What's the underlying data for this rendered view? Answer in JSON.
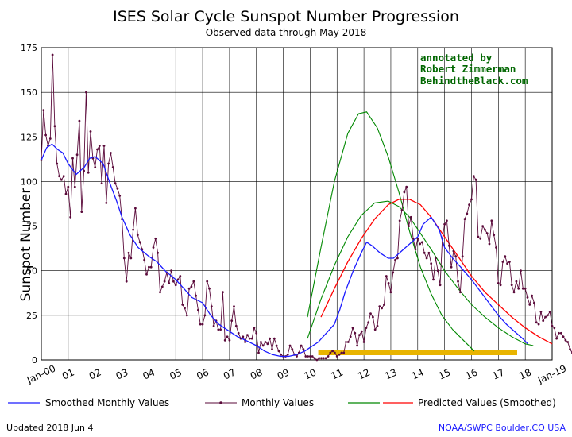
{
  "chart_data": {
    "type": "line",
    "title": "ISES Solar Cycle Sunspot Number Progression",
    "subtitle": "Observed data through May 2018",
    "ylabel": "Sunspot Number",
    "xlim": [
      2000.0,
      2019.0
    ],
    "ylim": [
      0,
      175
    ],
    "y_ticks": [
      0,
      25,
      50,
      75,
      100,
      125,
      150,
      175
    ],
    "x_ticks": [
      {
        "x": 2000,
        "label": "Jan-00"
      },
      {
        "x": 2001,
        "label": "01"
      },
      {
        "x": 2002,
        "label": "02"
      },
      {
        "x": 2003,
        "label": "03"
      },
      {
        "x": 2004,
        "label": "04"
      },
      {
        "x": 2005,
        "label": "05"
      },
      {
        "x": 2006,
        "label": "06"
      },
      {
        "x": 2007,
        "label": "07"
      },
      {
        "x": 2008,
        "label": "08"
      },
      {
        "x": 2009,
        "label": "09"
      },
      {
        "x": 2010,
        "label": "10"
      },
      {
        "x": 2011,
        "label": "11"
      },
      {
        "x": 2012,
        "label": "12"
      },
      {
        "x": 2013,
        "label": "13"
      },
      {
        "x": 2014,
        "label": "14"
      },
      {
        "x": 2015,
        "label": "15"
      },
      {
        "x": 2016,
        "label": "16"
      },
      {
        "x": 2017,
        "label": "17"
      },
      {
        "x": 2018,
        "label": "18"
      },
      {
        "x": 2019,
        "label": "Jan-19"
      }
    ],
    "grid": true,
    "annotation": [
      "annotated by",
      "Robert Zimmerman",
      "BehindtheBlack.com"
    ],
    "legend": [
      {
        "label": "Smoothed Monthly Values",
        "color": "#1a1aff",
        "style": "line"
      },
      {
        "label": "Monthly Values",
        "color": "#5a0a3a",
        "style": "line-marker"
      },
      {
        "label": "Predicted Values (Smoothed)",
        "color": "#ff0000",
        "style": "line",
        "secondary_color": "#008800"
      }
    ],
    "colors": {
      "monthly": "#5a0a3a",
      "smoothed": "#1a1aff",
      "predicted": "#ff0000",
      "bounds": "#008800",
      "bar": "#e8b400",
      "annotation": "#006600"
    },
    "series": [
      {
        "name": "Monthly Values",
        "x_start": 2000.0,
        "x_step": 0.08333,
        "values": [
          112,
          140,
          126,
          120,
          124,
          171,
          131,
          110,
          103,
          101,
          103,
          93,
          97,
          80,
          113,
          97,
          115,
          134,
          83,
          106,
          150,
          105,
          128,
          113,
          108,
          118,
          120,
          99,
          120,
          88,
          110,
          116,
          108,
          99,
          96,
          92,
          79,
          57,
          44,
          60,
          57,
          73,
          85,
          70,
          66,
          62,
          56,
          48,
          52,
          52,
          63,
          68,
          60,
          38,
          41,
          44,
          49,
          43,
          50,
          44,
          42,
          45,
          47,
          31,
          29,
          25,
          40,
          41,
          44,
          36,
          28,
          20,
          20,
          25,
          44,
          40,
          30,
          19,
          22,
          17,
          17,
          38,
          11,
          13,
          11,
          22,
          30,
          19,
          15,
          12,
          13,
          10,
          14,
          12,
          12,
          18,
          15,
          4,
          10,
          8,
          10,
          9,
          12,
          6,
          12,
          8,
          5,
          3,
          2,
          2,
          3,
          8,
          6,
          3,
          2,
          4,
          8,
          6,
          2,
          2,
          2,
          2,
          1,
          0,
          1,
          1,
          1,
          1,
          2,
          4,
          5,
          4,
          2,
          3,
          4,
          4,
          10,
          10,
          13,
          18,
          15,
          8,
          14,
          16,
          10,
          18,
          21,
          26,
          24,
          17,
          19,
          30,
          29,
          31,
          47,
          43,
          38,
          49,
          56,
          57,
          78,
          84,
          94,
          97,
          75,
          80,
          68,
          62,
          68,
          65,
          66,
          60,
          57,
          60,
          54,
          45,
          57,
          50,
          42,
          68,
          76,
          78,
          64,
          52,
          61,
          58,
          44,
          38,
          58,
          79,
          82,
          87,
          90,
          103,
          101,
          69,
          68,
          75,
          73,
          71,
          65,
          78,
          70,
          63,
          43,
          42,
          55,
          58,
          54,
          55,
          42,
          38,
          44,
          40,
          50,
          40,
          40,
          35,
          31,
          36,
          32,
          21,
          20,
          27,
          22,
          24,
          25,
          27,
          19,
          18,
          12,
          15,
          15,
          13,
          11,
          10,
          6,
          4,
          10,
          20,
          25,
          8,
          3,
          3,
          5,
          3,
          2,
          7
        ]
      },
      {
        "name": "Smoothed Monthly Values",
        "x": [
          2000.0,
          2000.2,
          2000.4,
          2000.6,
          2000.8,
          2001.0,
          2001.3,
          2001.6,
          2001.8,
          2002.0,
          2002.3,
          2002.6,
          2002.8,
          2003.0,
          2003.3,
          2003.6,
          2004.0,
          2004.3,
          2004.6,
          2005.0,
          2005.3,
          2005.6,
          2006.0,
          2006.3,
          2006.6,
          2007.0,
          2007.3,
          2007.6,
          2008.0,
          2008.3,
          2008.6,
          2008.9,
          2009.2,
          2009.5,
          2009.8,
          2010.0,
          2010.3,
          2010.6,
          2010.9,
          2011.1,
          2011.3,
          2011.6,
          2011.9,
          2012.1,
          2012.3,
          2012.6,
          2012.9,
          2013.1,
          2013.4,
          2013.7,
          2014.0,
          2014.2,
          2014.5,
          2014.8,
          2015.0,
          2015.3,
          2015.6,
          2016.0,
          2016.3,
          2016.6,
          2017.0,
          2017.3,
          2017.6,
          2017.9,
          2018.1
        ],
        "values": [
          112,
          119,
          121,
          118,
          116,
          110,
          104,
          108,
          113,
          114,
          110,
          97,
          89,
          80,
          70,
          63,
          58,
          55,
          50,
          45,
          40,
          35,
          32,
          25,
          20,
          16,
          13,
          11,
          8,
          5,
          3,
          2,
          2,
          3,
          5,
          7,
          10,
          15,
          20,
          28,
          38,
          50,
          60,
          66,
          64,
          60,
          57,
          57,
          61,
          65,
          69,
          76,
          80,
          73,
          63,
          57,
          52,
          45,
          39,
          33,
          25,
          20,
          16,
          12,
          9
        ]
      },
      {
        "name": "Predicted (Smoothed)",
        "x": [
          2010.4,
          2010.9,
          2011.4,
          2011.9,
          2012.4,
          2012.9,
          2013.3,
          2013.7,
          2014.1,
          2014.5,
          2015.0,
          2015.5,
          2016.0,
          2016.5,
          2017.0,
          2017.5,
          2018.0,
          2018.5,
          2019.0
        ],
        "values": [
          24,
          40,
          55,
          68,
          79,
          87,
          90,
          90,
          87,
          80,
          69,
          58,
          47,
          38,
          31,
          24,
          18,
          13,
          9
        ]
      },
      {
        "name": "Predicted upper bound",
        "x": [
          2009.9,
          2010.4,
          2010.9,
          2011.4,
          2011.8,
          2012.1,
          2012.5,
          2012.9,
          2013.3,
          2013.7,
          2014.1,
          2014.5,
          2014.9,
          2015.3,
          2015.7,
          2016.1
        ],
        "values": [
          24,
          63,
          100,
          127,
          138,
          139,
          130,
          114,
          94,
          72,
          52,
          37,
          25,
          17,
          11,
          5
        ]
      },
      {
        "name": "Predicted mid band",
        "x": [
          2009.9,
          2010.4,
          2010.9,
          2011.4,
          2011.9,
          2012.4,
          2012.9,
          2013.3,
          2013.7,
          2014.1,
          2014.5,
          2015.0,
          2015.5,
          2016.0,
          2016.5,
          2017.0,
          2017.5,
          2018.0,
          2018.3
        ],
        "values": [
          12,
          34,
          53,
          69,
          81,
          88,
          89,
          86,
          80,
          71,
          62,
          50,
          40,
          31,
          24,
          18,
          13,
          9,
          8
        ]
      }
    ],
    "highlight_bar": {
      "x_start": 2010.3,
      "x_end": 2017.7,
      "y": 4
    }
  },
  "footer": {
    "updated": "Updated 2018 Jun  4",
    "source": "NOAA/SWPC Boulder,CO USA"
  }
}
